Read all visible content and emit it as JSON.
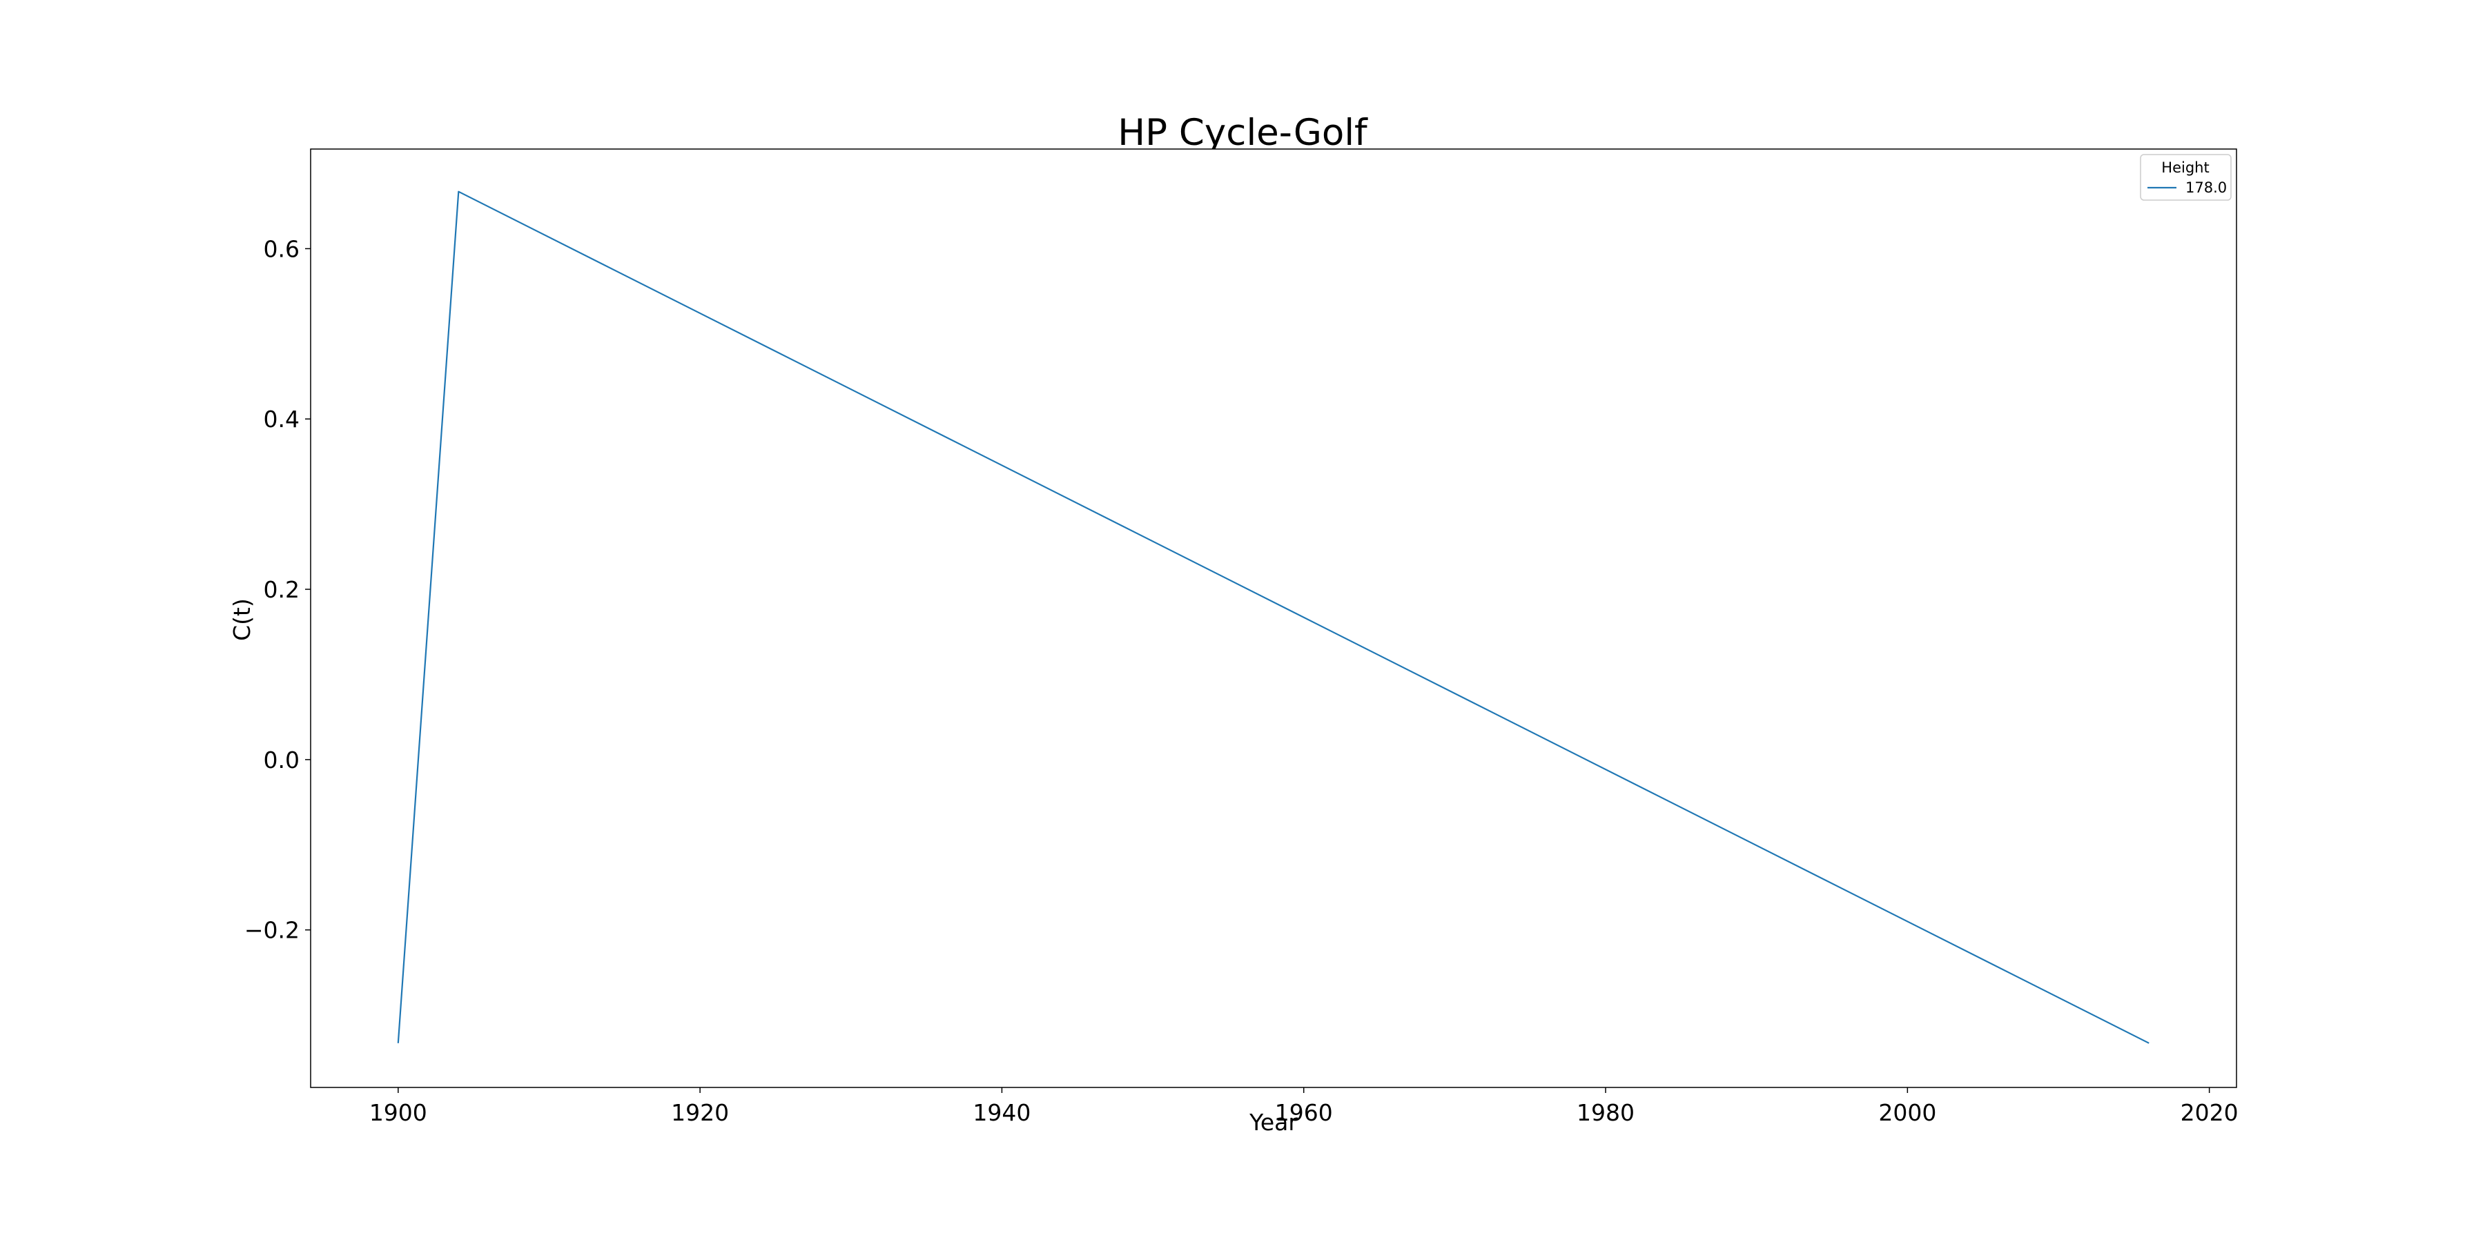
{
  "chart_data": {
    "type": "line",
    "title": "HP Cycle-Golf",
    "xlabel": "Year",
    "ylabel": "C(t)",
    "x_ticks": [
      1900,
      1920,
      1940,
      1960,
      1980,
      2000,
      2020
    ],
    "y_ticks": [
      -0.2,
      0.0,
      0.2,
      0.4,
      0.6
    ],
    "x_tick_labels": [
      "1900",
      "1920",
      "1940",
      "1960",
      "1980",
      "2000",
      "2020"
    ],
    "y_tick_labels": [
      "−0.2",
      "0.0",
      "0.2",
      "0.4",
      "0.6"
    ],
    "xlim": [
      1894.2,
      2021.8
    ],
    "ylim": [
      -0.385,
      0.717
    ],
    "grid": false,
    "legend": {
      "title": "Height",
      "placement": "top-right"
    },
    "series": [
      {
        "name": "178.0",
        "color": "#1f77b4",
        "x": [
          1900,
          1904,
          2016
        ],
        "y": [
          -0.333,
          0.667,
          -0.333
        ]
      }
    ]
  }
}
